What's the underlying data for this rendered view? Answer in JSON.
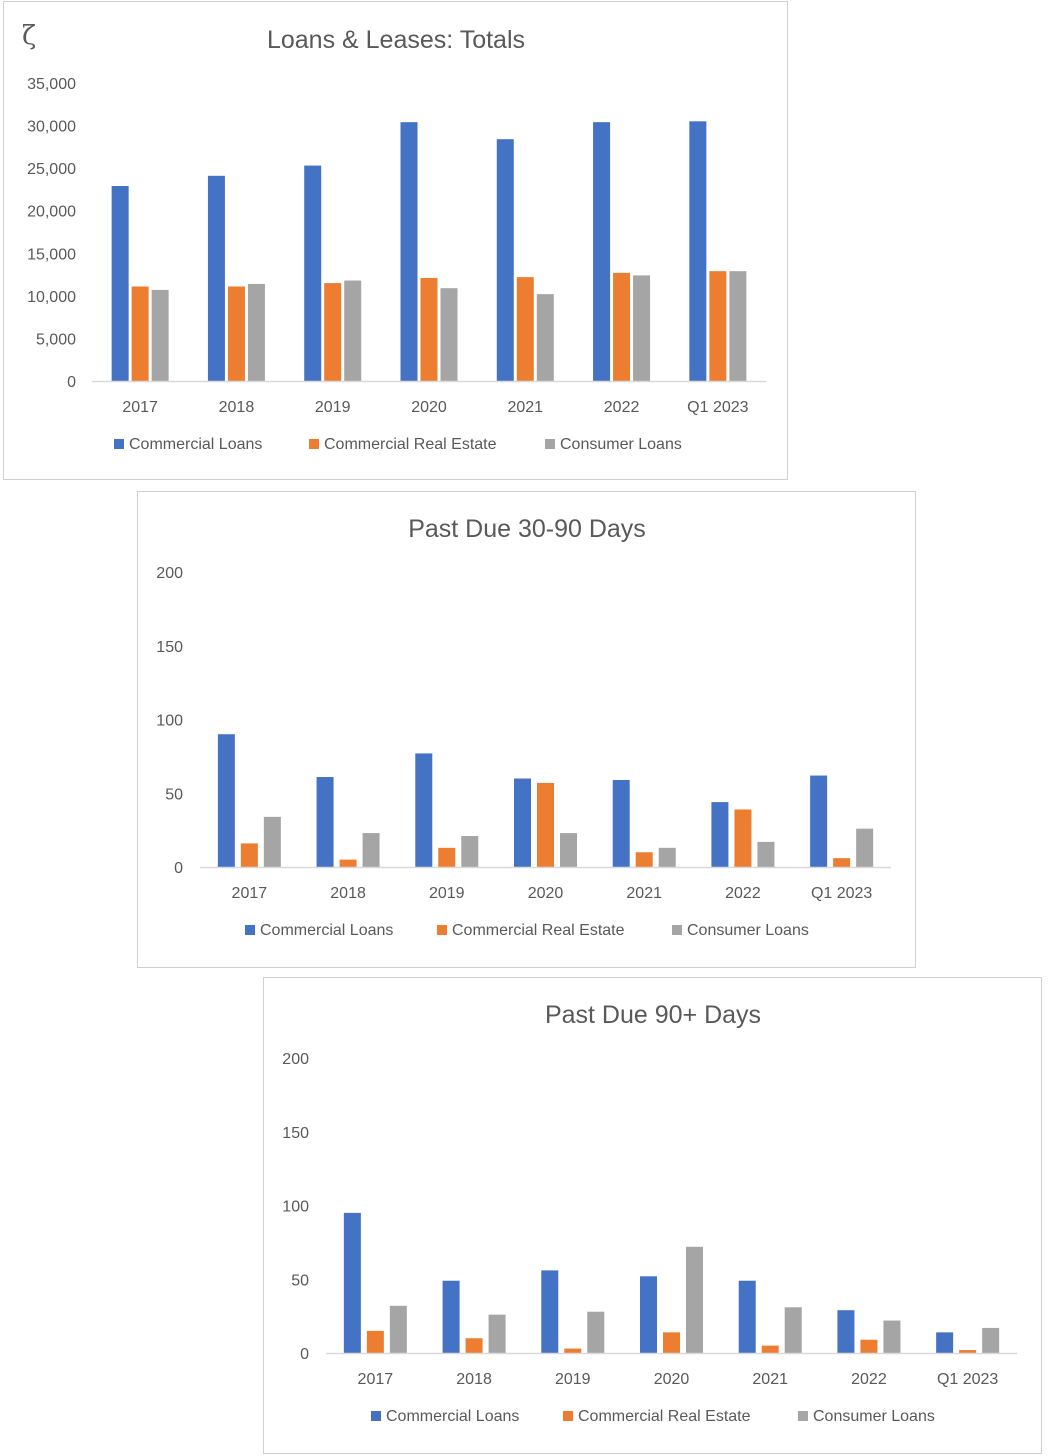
{
  "colors": {
    "commercial_loans": "#4472C4",
    "commercial_real_estate": "#ED7D31",
    "consumer_loans": "#A5A5A5",
    "axis": "#D9D9D9",
    "text": "#595959"
  },
  "corner_glyph": "ζ",
  "chart_data": [
    {
      "type": "bar",
      "title": "Loans & Leases: Totals",
      "categories": [
        "2017",
        "2018",
        "2019",
        "2020",
        "2021",
        "2022",
        "Q1 2023"
      ],
      "series": [
        {
          "name": "Commercial Loans",
          "color": "#4472C4",
          "values": [
            22900,
            24100,
            25300,
            30400,
            28400,
            30400,
            30500
          ]
        },
        {
          "name": "Commercial Real Estate",
          "color": "#ED7D31",
          "values": [
            11100,
            11100,
            11500,
            12100,
            12200,
            12700,
            12900
          ]
        },
        {
          "name": "Consumer Loans",
          "color": "#A5A5A5",
          "values": [
            10700,
            11400,
            11800,
            10900,
            10200,
            12400,
            12900
          ]
        }
      ],
      "yticks": [
        "0",
        "5,000",
        "10,000",
        "15,000",
        "20,000",
        "25,000",
        "30,000",
        "35,000"
      ],
      "ylim": [
        0,
        35000
      ],
      "grid": false,
      "legend": "bottom"
    },
    {
      "type": "bar",
      "title": "Past Due 30-90 Days",
      "categories": [
        "2017",
        "2018",
        "2019",
        "2020",
        "2021",
        "2022",
        "Q1 2023"
      ],
      "series": [
        {
          "name": "Commercial Loans",
          "color": "#4472C4",
          "values": [
            90,
            61,
            77,
            60,
            59,
            44,
            62
          ]
        },
        {
          "name": "Commercial Real Estate",
          "color": "#ED7D31",
          "values": [
            16,
            5,
            13,
            57,
            10,
            39,
            6
          ]
        },
        {
          "name": "Consumer Loans",
          "color": "#A5A5A5",
          "values": [
            34,
            23,
            21,
            23,
            13,
            17,
            26
          ]
        }
      ],
      "yticks": [
        "0",
        "50",
        "100",
        "150",
        "200"
      ],
      "ylim": [
        0,
        200
      ],
      "grid": false,
      "legend": "bottom"
    },
    {
      "type": "bar",
      "title": "Past Due 90+ Days",
      "categories": [
        "2017",
        "2018",
        "2019",
        "2020",
        "2021",
        "2022",
        "Q1 2023"
      ],
      "series": [
        {
          "name": "Commercial Loans",
          "color": "#4472C4",
          "values": [
            95,
            49,
            56,
            52,
            49,
            29,
            14
          ]
        },
        {
          "name": "Commercial Real Estate",
          "color": "#ED7D31",
          "values": [
            15,
            10,
            3,
            14,
            5,
            9,
            2
          ]
        },
        {
          "name": "Consumer Loans",
          "color": "#A5A5A5",
          "values": [
            32,
            26,
            28,
            72,
            31,
            22,
            17
          ]
        }
      ],
      "yticks": [
        "0",
        "50",
        "100",
        "150",
        "200"
      ],
      "ylim": [
        0,
        200
      ],
      "grid": false,
      "legend": "bottom"
    }
  ]
}
